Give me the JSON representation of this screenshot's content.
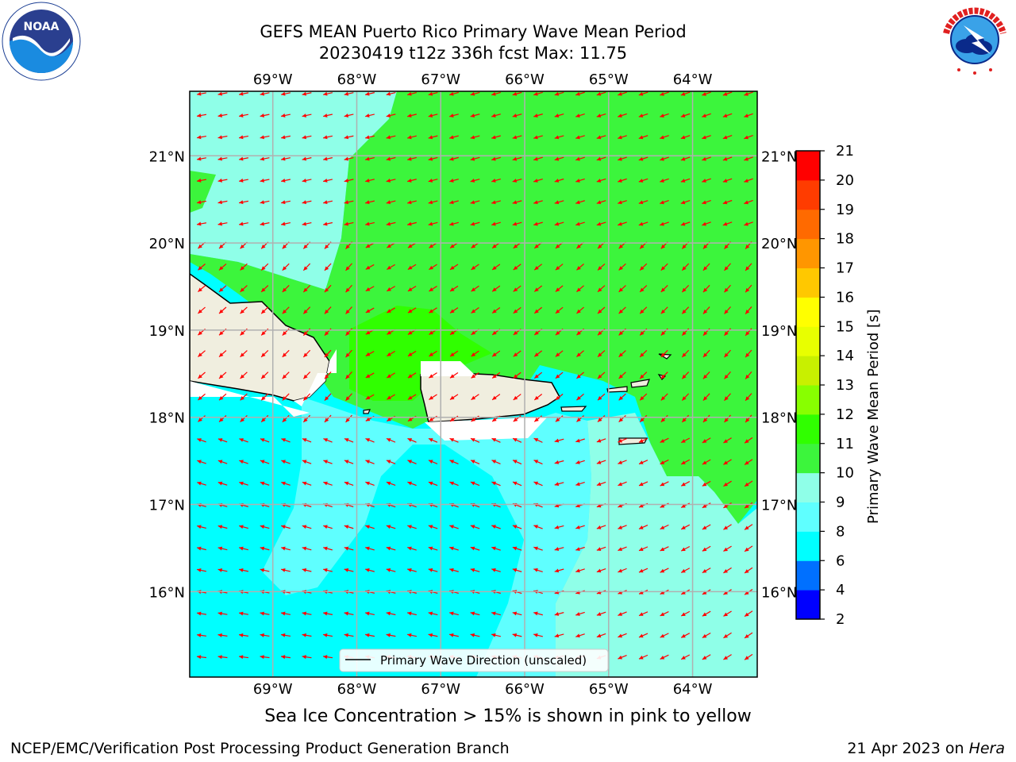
{
  "title_line1": "GEFS MEAN Puerto Rico Primary Wave Mean Period",
  "title_line2": "20230419 t12z 336h fcst   Max: 11.75",
  "note": "Sea Ice Concentration > 15% is shown in pink to yellow",
  "branch": "NCEP/EMC/Verification Post Processing Product Generation Branch",
  "date_text": "21 Apr 2023 on ",
  "date_host": "Hera",
  "legend_label": "Primary Wave Direction (unscaled)",
  "colorbar": {
    "label": "Primary Wave Mean Period [s]",
    "ticks": [
      "2",
      "4",
      "6",
      "8",
      "9",
      "10",
      "11",
      "12",
      "13",
      "14",
      "15",
      "16",
      "17",
      "18",
      "19",
      "20",
      "21"
    ],
    "colors": [
      "#0000ff",
      "#0070ff",
      "#00ffff",
      "#5fffff",
      "#8fffe8",
      "#3cf53c",
      "#30ff00",
      "#88ff00",
      "#c8f000",
      "#e8ff00",
      "#ffff00",
      "#ffc800",
      "#ff9600",
      "#ff6a00",
      "#ff3c00",
      "#ff0000"
    ]
  },
  "map": {
    "lon_ticks": [
      "69°W",
      "68°W",
      "67°W",
      "66°W",
      "65°W",
      "64°W"
    ],
    "lat_ticks": [
      "21°N",
      "20°N",
      "19°N",
      "18°N",
      "17°N",
      "16°N"
    ],
    "lon_values": [
      -69,
      -68,
      -67,
      -66,
      -65,
      -64
    ],
    "lat_values": [
      21,
      20,
      19,
      18,
      17,
      16
    ],
    "lon_range": [
      -69.99,
      -63.23
    ],
    "lat_range": [
      15.02,
      21.74
    ],
    "arrow_color": "#ff0000"
  },
  "logos": {
    "left": "NOAA",
    "right": "NATIONAL WEATHER SERVICE"
  }
}
